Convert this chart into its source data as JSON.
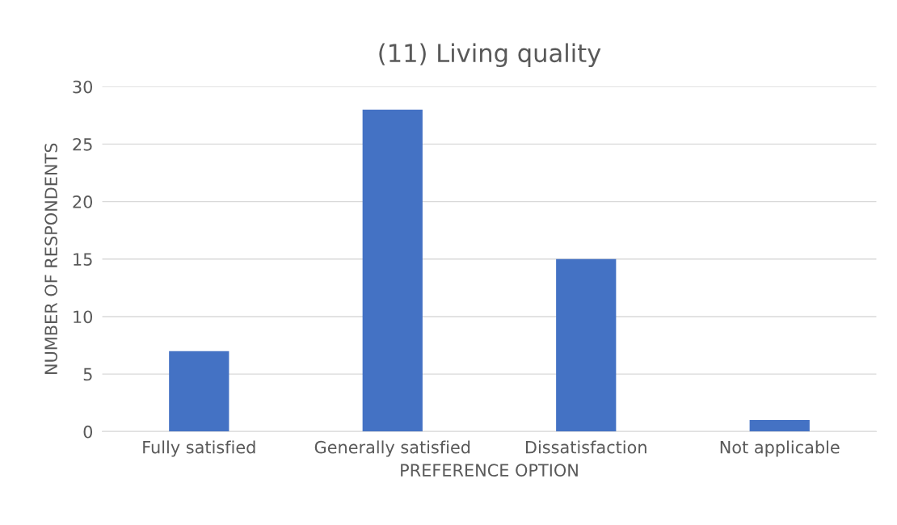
{
  "chart_data": {
    "type": "bar",
    "title": "(11) Living quality",
    "xlabel": "PREFERENCE OPTION",
    "ylabel": "NUMBER OF RESPONDENTS",
    "categories": [
      "Fully satisfied",
      "Generally satisfied",
      "Dissatisfaction",
      "Not applicable"
    ],
    "values": [
      7,
      28,
      15,
      1
    ],
    "color": "#4472c4",
    "ylim": [
      0,
      30
    ],
    "yticks": [
      0,
      5,
      10,
      15,
      20,
      25,
      30
    ],
    "grid": "y"
  }
}
